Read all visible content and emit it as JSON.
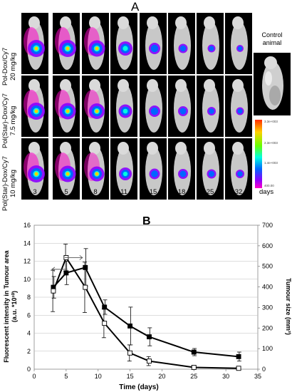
{
  "panel_a": {
    "letter": "A",
    "rows": [
      {
        "line1": "Pol-Dox/Cy7",
        "line2": "20 mg/kg"
      },
      {
        "line1": "Pol(Star)-Dox/Cy7",
        "line2": "7.5 mg/kg"
      },
      {
        "line1": "Pol(Star)-Dox/Cy7",
        "line2": "10 mg/kg"
      }
    ],
    "days": [
      "3",
      "5",
      "8",
      "11",
      "15",
      "18",
      "25",
      "32"
    ],
    "days_unit": "days",
    "control_label_1": "Control",
    "control_label_2": "animal",
    "colorbar_ticks": [
      "3.3e+003",
      "2.3e+003",
      "1.4e+003",
      "400.00"
    ],
    "colorbar_colors": [
      "#ff2a00",
      "#ffd000",
      "#66ff00",
      "#00ffe0",
      "#0066ff",
      "#8a00ff",
      "#ff00c8"
    ]
  },
  "chart_data": {
    "letter": "B",
    "type": "line",
    "xlabel": "Time (days)",
    "ylabel_left": "Fluorescent intensity in Tumour area (a.u. *10^10)",
    "ylabel_left_line1": "Fluorescent intensity in Tumour area",
    "ylabel_left_line2": "(a.u. *10¹⁰)",
    "ylabel_right": "Tumour size (mm³)",
    "xlim": [
      0,
      35
    ],
    "ylim_left": [
      0,
      16
    ],
    "ylim_right": [
      0,
      700
    ],
    "x_ticks": [
      "0",
      "5",
      "10",
      "15",
      "20",
      "25",
      "30",
      "35"
    ],
    "y_left_ticks": [
      "0",
      "2",
      "4",
      "6",
      "8",
      "10",
      "12",
      "14",
      "16"
    ],
    "y_right_ticks": [
      "0",
      "100",
      "200",
      "300",
      "400",
      "500",
      "600",
      "700"
    ],
    "series": [
      {
        "marker": "filled-square",
        "axis": "left",
        "x": [
          3,
          5,
          8,
          11,
          15,
          18,
          25,
          32
        ],
        "y": [
          9.1,
          10.7,
          11.3,
          6.9,
          4.8,
          3.6,
          1.9,
          1.4
        ],
        "err": [
          1.2,
          1.3,
          2.1,
          0.8,
          2.1,
          1.0,
          0.4,
          0.5
        ]
      },
      {
        "marker": "open-square",
        "axis": "left",
        "x": [
          3,
          5,
          8,
          11,
          15,
          18,
          25,
          32
        ],
        "y": [
          8.7,
          12.4,
          9.1,
          5.1,
          1.8,
          0.9,
          0.2,
          0.1
        ],
        "err": [
          2.3,
          1.5,
          2.8,
          1.6,
          0.9,
          0.5,
          0.2,
          0.1
        ]
      }
    ],
    "annotations": [
      {
        "type": "arrow",
        "direction": "left",
        "at_x": 3,
        "from_x": 5.2,
        "y": 11.1,
        "points_to": "left axis"
      },
      {
        "type": "arrow",
        "direction": "right",
        "from_x": 4.8,
        "to_x": 8,
        "y": 12.4,
        "points_to": "right axis"
      }
    ],
    "colors": {
      "line": "#000000",
      "frame": "#888888"
    }
  }
}
